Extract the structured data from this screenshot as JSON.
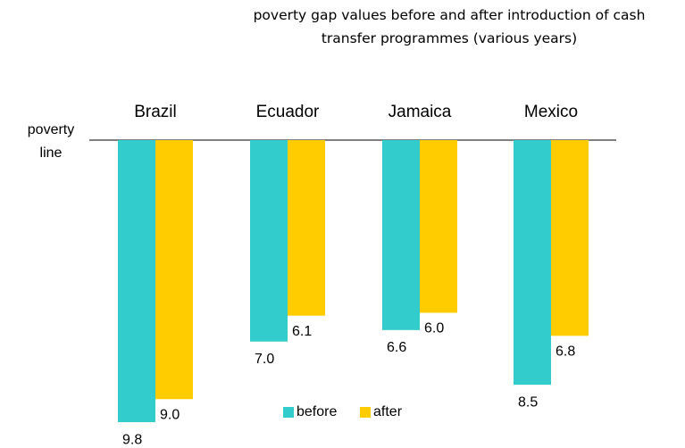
{
  "chart_data": {
    "type": "bar",
    "title": "poverty gap values before and after introduction of cash transfer programmes (various years)",
    "reference_line_label": "poverty line",
    "categories": [
      "Brazil",
      "Ecuador",
      "Jamaica",
      "Mexico"
    ],
    "series": [
      {
        "name": "before",
        "color": "#33cccc",
        "values": [
          9.8,
          7.0,
          6.6,
          8.5
        ],
        "value_labels": [
          "9.8",
          "7.0",
          "6.6",
          "8.5"
        ]
      },
      {
        "name": "after",
        "color": "#ffcc00",
        "values": [
          9.0,
          6.1,
          6.0,
          6.8
        ],
        "value_labels": [
          "9.0",
          "6.1",
          "6.0",
          "6.8"
        ]
      }
    ],
    "legend": "bottom"
  }
}
